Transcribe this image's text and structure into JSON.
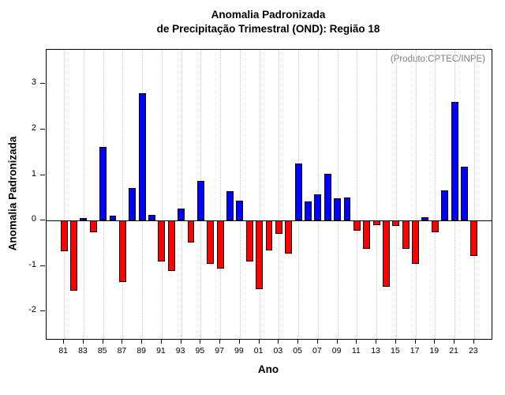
{
  "title": {
    "line1": "Anomalia Padronizada",
    "line2": "de Precipitação Trimestral (OND): Região 18"
  },
  "annotation": "(Produto:CPTEC/INPE)",
  "chart_data": {
    "type": "bar",
    "title": "Anomalia Padronizada de Precipitação Trimestral (OND): Região 18",
    "xlabel": "Ano",
    "ylabel": "Anomalia Padronizada",
    "ylim": [
      -2.6,
      3.75
    ],
    "yticks": [
      -2,
      -1,
      0,
      1,
      2,
      3
    ],
    "grid": "vertical-dotted-at-xticks",
    "legend": "none",
    "bar_colors": {
      "positive": "#0000ff",
      "negative": "#ff0000",
      "outline": "#000000"
    },
    "xtick_every": 2,
    "categories": [
      "81",
      "82",
      "83",
      "84",
      "85",
      "86",
      "87",
      "88",
      "89",
      "90",
      "91",
      "92",
      "93",
      "94",
      "95",
      "96",
      "97",
      "98",
      "99",
      "00",
      "01",
      "02",
      "03",
      "04",
      "05",
      "06",
      "07",
      "08",
      "09",
      "10",
      "11",
      "12",
      "13",
      "14",
      "15",
      "16",
      "17",
      "18",
      "19",
      "20",
      "21",
      "22",
      "23"
    ],
    "values": [
      -0.68,
      -1.55,
      0.05,
      -0.25,
      1.62,
      0.1,
      -1.35,
      0.72,
      2.8,
      0.13,
      -0.9,
      -1.1,
      0.27,
      -0.48,
      0.87,
      -0.95,
      -1.05,
      0.65,
      0.43,
      -0.9,
      -1.5,
      -0.65,
      -0.3,
      -0.72,
      1.25,
      0.42,
      0.58,
      1.03,
      0.48,
      0.5,
      -0.22,
      -0.62,
      -0.1,
      -1.45,
      -0.12,
      -0.62,
      -0.95,
      0.07,
      -0.25,
      0.67,
      2.6,
      1.18,
      -0.78
    ]
  }
}
